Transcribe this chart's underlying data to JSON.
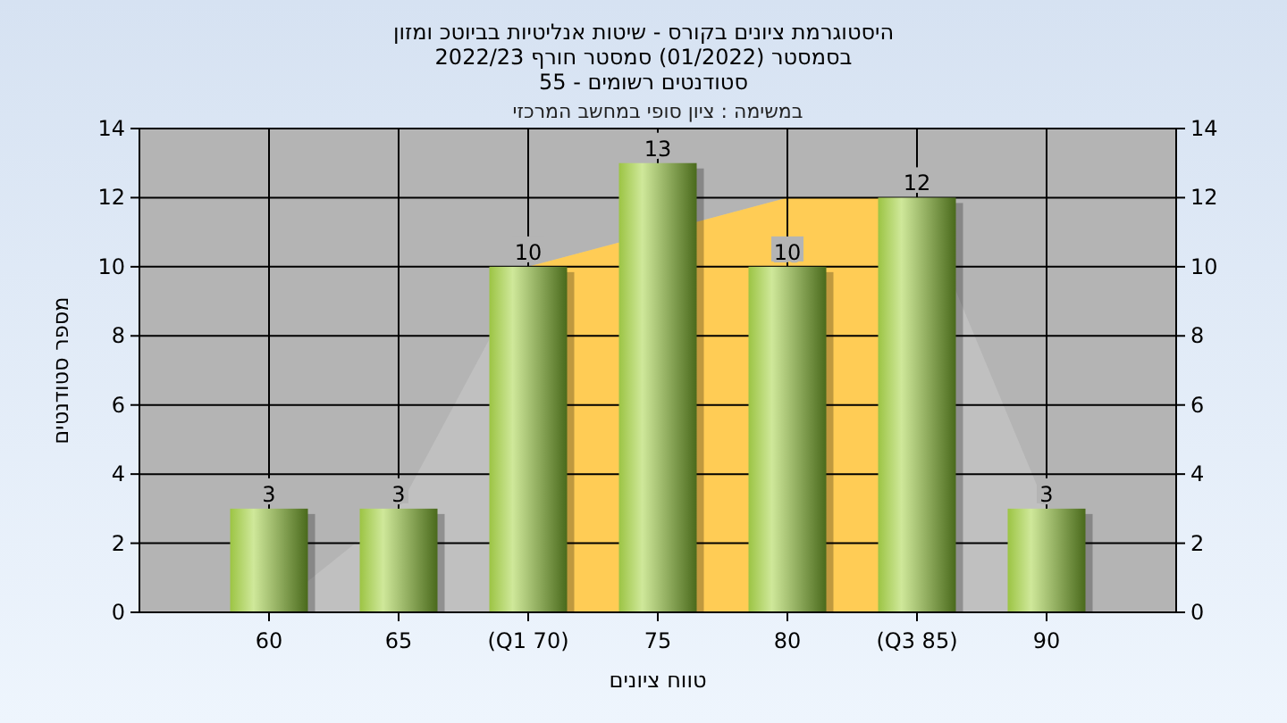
{
  "chart_data": {
    "type": "bar",
    "title": "היסטוגרמת ציונים בקורס - שיטות אנליטיות בביוטכ ומזון\nבסמסטר  (01/2022)  סמסטר חורף 2022/23\nסטודנטים רשומים - 55",
    "xlabel": "טווח ציונים",
    "ylabel": "מספר סטודנטים",
    "annotations": [
      "במשימה : ציון סופי במחשב המרכזי"
    ],
    "categories": [
      "60",
      "65",
      "(Q1 70)",
      "75",
      "80",
      "(Q3 85)",
      "90"
    ],
    "series": [
      {
        "type": "area",
        "color": "#c0c0c0",
        "values": [
          0,
          3,
          10,
          null,
          12,
          12,
          3
        ]
      },
      {
        "type": "area",
        "color": "#ffcc55",
        "values": [
          null,
          null,
          10,
          null,
          12,
          12,
          null
        ]
      },
      {
        "color": "#9cc444",
        "values": [
          3,
          3,
          10,
          13,
          10,
          12,
          3
        ],
        "value_labels": [
          "3",
          "3",
          "10",
          "13",
          "10",
          "12",
          "3"
        ]
      }
    ],
    "ylim": [
      0,
      14
    ],
    "yticks": [
      0,
      2,
      4,
      6,
      8,
      10,
      12,
      14
    ],
    "y2lim": [
      0,
      14
    ],
    "y2ticks": [
      0,
      2,
      4,
      6,
      8,
      10,
      12,
      14
    ],
    "grid": true
  }
}
